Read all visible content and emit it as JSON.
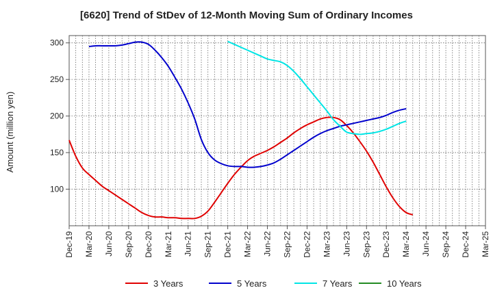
{
  "chart_data": {
    "type": "line",
    "title": "[6620]  Trend of StDev of 12-Month Moving Sum of Ordinary Incomes",
    "ylabel": "Amount (million yen)",
    "xlabel": "",
    "ylim": [
      50,
      310
    ],
    "yticks": [
      100,
      150,
      200,
      250,
      300
    ],
    "x_ticks": [
      "Dec-19",
      "Mar-20",
      "Jun-20",
      "Sep-20",
      "Dec-20",
      "Mar-21",
      "Jun-21",
      "Sep-21",
      "Dec-21",
      "Mar-22",
      "Jun-22",
      "Sep-22",
      "Dec-22",
      "Mar-23",
      "Jun-23",
      "Sep-23",
      "Dec-23",
      "Mar-24",
      "Jun-24",
      "Sep-24",
      "Dec-24",
      "Mar-25"
    ],
    "grid": true,
    "legend_position": "bottom",
    "series": [
      {
        "name": "3 Years",
        "color": "#e00000",
        "points": [
          [
            0,
            167
          ],
          [
            1,
            145
          ],
          [
            2,
            129
          ],
          [
            3,
            120
          ],
          [
            4,
            112
          ],
          [
            5,
            104
          ],
          [
            6,
            98
          ],
          [
            7,
            92
          ],
          [
            8,
            86
          ],
          [
            9,
            80
          ],
          [
            10,
            74
          ],
          [
            11,
            68
          ],
          [
            12,
            64
          ],
          [
            13,
            62
          ],
          [
            14,
            62
          ],
          [
            15,
            61
          ],
          [
            16,
            61
          ],
          [
            17,
            60
          ],
          [
            18,
            60
          ],
          [
            19,
            60
          ],
          [
            20,
            63
          ],
          [
            21,
            70
          ],
          [
            22,
            82
          ],
          [
            23,
            95
          ],
          [
            24,
            108
          ],
          [
            25,
            120
          ],
          [
            26,
            130
          ],
          [
            27,
            139
          ],
          [
            28,
            145
          ],
          [
            29,
            149
          ],
          [
            30,
            153
          ],
          [
            31,
            158
          ],
          [
            32,
            164
          ],
          [
            33,
            170
          ],
          [
            34,
            177
          ],
          [
            35,
            183
          ],
          [
            36,
            188
          ],
          [
            37,
            192
          ],
          [
            38,
            196
          ],
          [
            39,
            198
          ],
          [
            40,
            198
          ],
          [
            41,
            195
          ],
          [
            42,
            187
          ],
          [
            43,
            177
          ],
          [
            44,
            165
          ],
          [
            45,
            152
          ],
          [
            46,
            137
          ],
          [
            47,
            120
          ],
          [
            48,
            103
          ],
          [
            49,
            88
          ],
          [
            50,
            76
          ],
          [
            51,
            68
          ],
          [
            52,
            65
          ]
        ]
      },
      {
        "name": "5 Years",
        "color": "#0000cc",
        "points": [
          [
            3,
            295
          ],
          [
            4,
            296
          ],
          [
            5,
            296
          ],
          [
            6,
            296
          ],
          [
            7,
            296
          ],
          [
            8,
            297
          ],
          [
            9,
            299
          ],
          [
            10,
            301
          ],
          [
            11,
            301
          ],
          [
            12,
            298
          ],
          [
            13,
            290
          ],
          [
            14,
            280
          ],
          [
            15,
            268
          ],
          [
            16,
            253
          ],
          [
            17,
            237
          ],
          [
            18,
            218
          ],
          [
            19,
            196
          ],
          [
            20,
            168
          ],
          [
            21,
            150
          ],
          [
            22,
            140
          ],
          [
            23,
            135
          ],
          [
            24,
            132
          ],
          [
            25,
            131
          ],
          [
            26,
            131
          ],
          [
            27,
            130
          ],
          [
            28,
            130
          ],
          [
            29,
            131
          ],
          [
            30,
            133
          ],
          [
            31,
            136
          ],
          [
            32,
            141
          ],
          [
            33,
            147
          ],
          [
            34,
            153
          ],
          [
            35,
            159
          ],
          [
            36,
            165
          ],
          [
            37,
            171
          ],
          [
            38,
            176
          ],
          [
            39,
            180
          ],
          [
            40,
            183
          ],
          [
            41,
            186
          ],
          [
            42,
            188
          ],
          [
            43,
            190
          ],
          [
            44,
            192
          ],
          [
            45,
            194
          ],
          [
            46,
            196
          ],
          [
            47,
            198
          ],
          [
            48,
            201
          ],
          [
            49,
            205
          ],
          [
            50,
            208
          ],
          [
            51,
            210
          ]
        ]
      },
      {
        "name": "7 Years",
        "color": "#00e5e5",
        "points": [
          [
            24,
            302
          ],
          [
            25,
            298
          ],
          [
            26,
            294
          ],
          [
            27,
            290
          ],
          [
            28,
            286
          ],
          [
            29,
            282
          ],
          [
            30,
            278
          ],
          [
            31,
            276
          ],
          [
            32,
            274
          ],
          [
            33,
            269
          ],
          [
            34,
            261
          ],
          [
            35,
            251
          ],
          [
            36,
            240
          ],
          [
            37,
            229
          ],
          [
            38,
            218
          ],
          [
            39,
            207
          ],
          [
            40,
            195
          ],
          [
            41,
            186
          ],
          [
            42,
            178
          ],
          [
            43,
            176
          ],
          [
            44,
            175
          ],
          [
            45,
            176
          ],
          [
            46,
            177
          ],
          [
            47,
            179
          ],
          [
            48,
            182
          ],
          [
            49,
            186
          ],
          [
            50,
            190
          ],
          [
            51,
            193
          ]
        ]
      },
      {
        "name": "10 Years",
        "color": "#228b22",
        "points": []
      }
    ]
  }
}
